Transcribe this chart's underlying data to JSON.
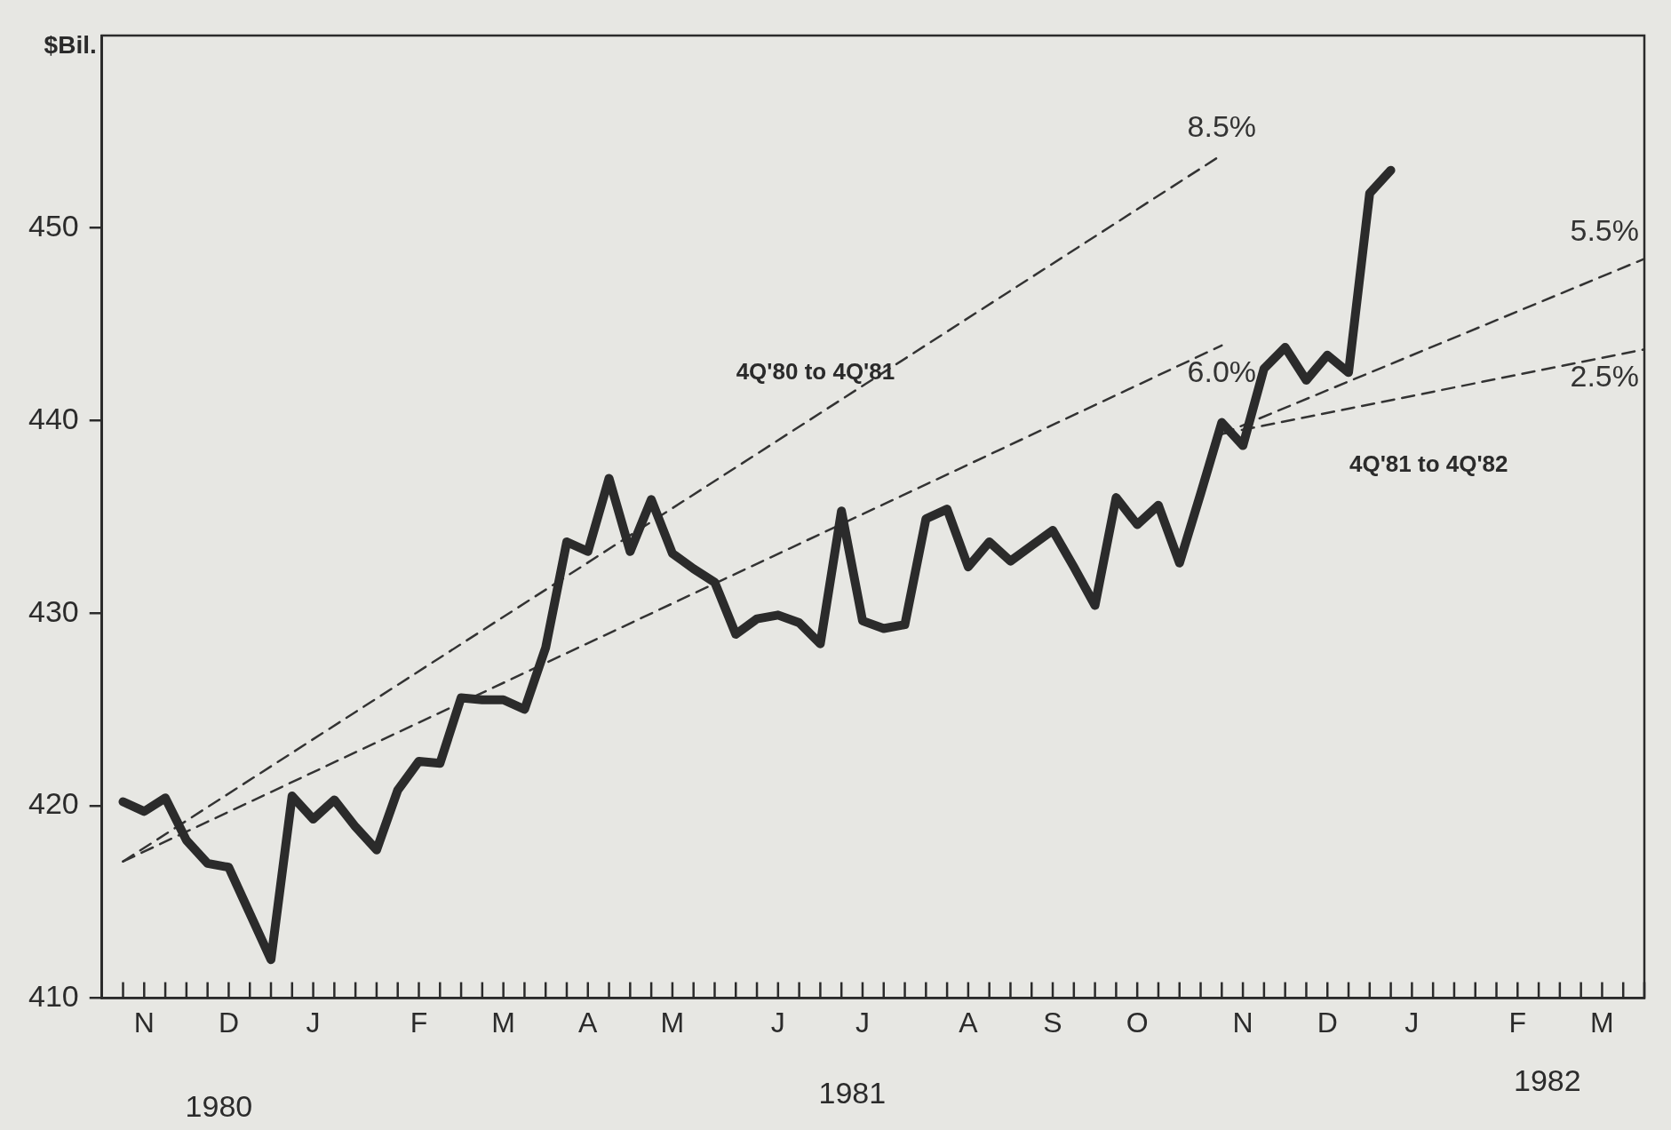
{
  "chart_data": {
    "type": "line",
    "ylabel": "$Bil.",
    "ylim": [
      410,
      460
    ],
    "yticks": [
      410,
      420,
      430,
      440,
      450
    ],
    "categories": [
      null,
      null,
      "N",
      null,
      null,
      null,
      "D",
      null,
      null,
      null,
      "J",
      null,
      null,
      null,
      null,
      "F",
      null,
      null,
      null,
      "M",
      null,
      null,
      null,
      "A",
      null,
      null,
      null,
      "M",
      null,
      null,
      null,
      null,
      "J",
      null,
      null,
      null,
      "J",
      null,
      null,
      null,
      null,
      "A",
      null,
      null,
      null,
      "S",
      null,
      null,
      null,
      "O",
      null,
      null,
      null,
      null,
      "N",
      null,
      null,
      null,
      "D",
      null,
      null,
      null,
      "J",
      null,
      null,
      null,
      null,
      "F",
      null,
      null,
      null,
      "M",
      null,
      null
    ],
    "grid": false,
    "legend": false,
    "series": [
      {
        "color": "#2b2b2b",
        "line_style": "solid",
        "values": [
          null,
          420.2,
          419.7,
          420.4,
          418.2,
          417.0,
          416.8,
          414.4,
          412.0,
          420.5,
          419.3,
          420.3,
          418.9,
          417.7,
          420.8,
          422.3,
          422.2,
          425.6,
          425.5,
          425.5,
          425.0,
          428.2,
          433.7,
          433.2,
          437.0,
          433.2,
          435.9,
          433.1,
          432.3,
          431.6,
          428.9,
          429.7,
          429.9,
          429.5,
          428.4,
          435.3,
          429.6,
          429.2,
          429.4,
          434.9,
          435.4,
          432.4,
          433.7,
          432.7,
          433.5,
          434.3,
          432.4,
          430.4,
          436.0,
          434.6,
          435.6,
          432.6,
          436.2,
          439.9,
          438.7,
          442.7,
          443.8,
          442.1,
          443.4,
          442.5,
          451.8,
          453.0,
          null,
          null,
          null,
          null,
          null,
          null,
          null,
          null,
          null,
          null,
          null,
          null
        ]
      },
      {
        "name": "8.5%",
        "color": "#333333",
        "line_style": "dashed",
        "values": [
          null,
          417.1,
          null,
          null,
          null,
          null,
          null,
          null,
          null,
          null,
          null,
          null,
          null,
          null,
          null,
          null,
          null,
          null,
          null,
          null,
          null,
          null,
          null,
          null,
          null,
          null,
          null,
          null,
          null,
          null,
          null,
          null,
          null,
          null,
          null,
          null,
          null,
          null,
          null,
          null,
          null,
          null,
          null,
          null,
          null,
          null,
          null,
          null,
          null,
          null,
          null,
          null,
          null,
          453.8,
          null,
          null,
          null,
          null,
          null,
          null,
          null,
          null,
          null,
          null,
          null,
          null,
          null,
          null,
          null,
          null,
          null,
          null,
          null,
          null
        ]
      },
      {
        "name": "6.0%",
        "color": "#333333",
        "line_style": "dashed",
        "values": [
          null,
          417.1,
          null,
          null,
          null,
          null,
          null,
          null,
          null,
          null,
          null,
          null,
          null,
          null,
          null,
          null,
          null,
          null,
          null,
          null,
          null,
          null,
          null,
          null,
          null,
          null,
          null,
          null,
          null,
          null,
          null,
          null,
          null,
          null,
          null,
          null,
          null,
          null,
          null,
          null,
          null,
          null,
          null,
          null,
          null,
          null,
          null,
          null,
          null,
          null,
          null,
          null,
          null,
          443.9,
          null,
          null,
          null,
          null,
          null,
          null,
          null,
          null,
          null,
          null,
          null,
          null,
          null,
          null,
          null,
          null,
          null,
          null,
          null,
          null
        ]
      },
      {
        "name": "5.5%",
        "color": "#333333",
        "line_style": "dashed",
        "values": [
          null,
          null,
          null,
          null,
          null,
          null,
          null,
          null,
          null,
          null,
          null,
          null,
          null,
          null,
          null,
          null,
          null,
          null,
          null,
          null,
          null,
          null,
          null,
          null,
          null,
          null,
          null,
          null,
          null,
          null,
          null,
          null,
          null,
          null,
          null,
          null,
          null,
          null,
          null,
          null,
          null,
          null,
          null,
          null,
          null,
          null,
          null,
          null,
          null,
          null,
          null,
          null,
          null,
          439.3,
          null,
          null,
          null,
          null,
          null,
          null,
          null,
          null,
          null,
          null,
          null,
          null,
          null,
          null,
          null,
          null,
          null,
          null,
          null,
          448.4
        ]
      },
      {
        "name": "2.5%",
        "color": "#333333",
        "line_style": "dashed",
        "values": [
          null,
          null,
          null,
          null,
          null,
          null,
          null,
          null,
          null,
          null,
          null,
          null,
          null,
          null,
          null,
          null,
          null,
          null,
          null,
          null,
          null,
          null,
          null,
          null,
          null,
          null,
          null,
          null,
          null,
          null,
          null,
          null,
          null,
          null,
          null,
          null,
          null,
          null,
          null,
          null,
          null,
          null,
          null,
          null,
          null,
          null,
          null,
          null,
          null,
          null,
          null,
          null,
          null,
          439.3,
          null,
          null,
          null,
          null,
          null,
          null,
          null,
          null,
          null,
          null,
          null,
          null,
          null,
          null,
          null,
          null,
          null,
          null,
          null,
          443.7
        ]
      }
    ],
    "annotations": [
      "4Q'80 to 4Q'81",
      "4Q'81 to 4Q'82",
      "1980",
      "1981",
      "1982"
    ]
  }
}
